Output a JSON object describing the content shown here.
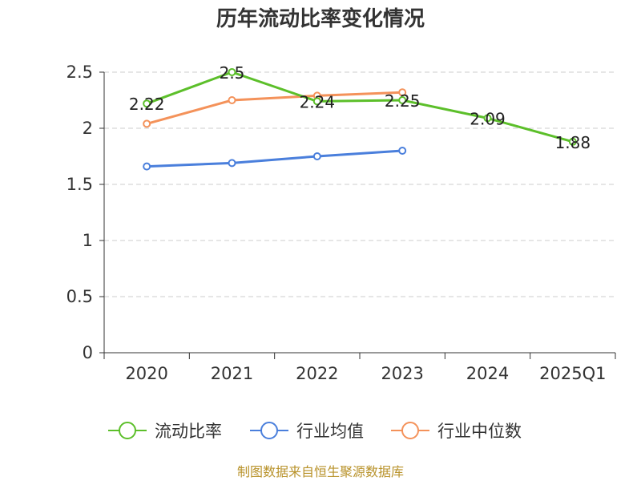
{
  "chart_data": {
    "type": "line",
    "title": "历年流动比率变化情况",
    "categories": [
      "2020",
      "2021",
      "2022",
      "2023",
      "2024",
      "2025Q1"
    ],
    "ylim": [
      0,
      2.5
    ],
    "yticks": [
      "0",
      "0.5",
      "1",
      "1.5",
      "2",
      "2.5"
    ],
    "grid": true,
    "legend_position": "bottom",
    "series": [
      {
        "name": "流动比率",
        "color": "#5cbf2a",
        "values": [
          2.22,
          2.5,
          2.24,
          2.25,
          2.09,
          1.88
        ],
        "labels": [
          "2.22",
          "2.5",
          "2.24",
          "2.25",
          "2.09",
          "1.88"
        ]
      },
      {
        "name": "行业均值",
        "color": "#4a7fdc",
        "values": [
          1.66,
          1.69,
          1.75,
          1.8,
          null,
          null
        ]
      },
      {
        "name": "行业中位数",
        "color": "#f4925a",
        "values": [
          2.04,
          2.25,
          2.29,
          2.32,
          null,
          null
        ]
      }
    ],
    "source": "制图数据来自恒生聚源数据库"
  }
}
